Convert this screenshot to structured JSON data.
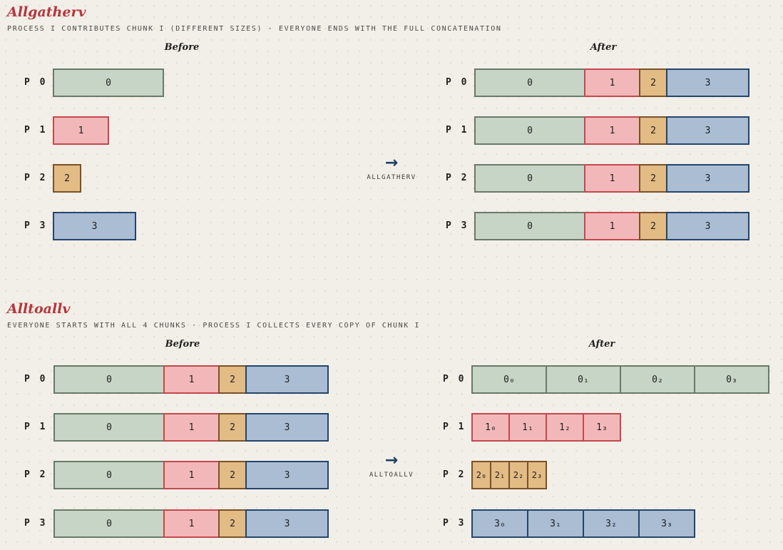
{
  "sections": [
    {
      "title": "Allgatherv",
      "subtitle": "PROCESS I CONTRIBUTES CHUNK I (DIFFERENT SIZES) · EVERYONE ENDS WITH THE FULL CONCATENATION",
      "before_label": "Before",
      "after_label": "After",
      "op_arrow": "→",
      "op_label": "ALLGATHERV",
      "before_rows": [
        {
          "label": "P 0",
          "chunks": [
            {
              "text": "0",
              "color": 0
            }
          ]
        },
        {
          "label": "P 1",
          "chunks": [
            {
              "text": "1",
              "color": 1
            }
          ]
        },
        {
          "label": "P 2",
          "chunks": [
            {
              "text": "2",
              "color": 2
            }
          ]
        },
        {
          "label": "P 3",
          "chunks": [
            {
              "text": "3",
              "color": 3
            }
          ]
        }
      ],
      "after_rows": [
        {
          "label": "P 0",
          "chunks": [
            {
              "text": "0",
              "color": 0
            },
            {
              "text": "1",
              "color": 1
            },
            {
              "text": "2",
              "color": 2
            },
            {
              "text": "3",
              "color": 3
            }
          ]
        },
        {
          "label": "P 1",
          "chunks": [
            {
              "text": "0",
              "color": 0
            },
            {
              "text": "1",
              "color": 1
            },
            {
              "text": "2",
              "color": 2
            },
            {
              "text": "3",
              "color": 3
            }
          ]
        },
        {
          "label": "P 2",
          "chunks": [
            {
              "text": "0",
              "color": 0
            },
            {
              "text": "1",
              "color": 1
            },
            {
              "text": "2",
              "color": 2
            },
            {
              "text": "3",
              "color": 3
            }
          ]
        },
        {
          "label": "P 3",
          "chunks": [
            {
              "text": "0",
              "color": 0
            },
            {
              "text": "1",
              "color": 1
            },
            {
              "text": "2",
              "color": 2
            },
            {
              "text": "3",
              "color": 3
            }
          ]
        }
      ]
    },
    {
      "title": "Alltoallv",
      "subtitle": "EVERYONE STARTS WITH ALL 4 CHUNKS · PROCESS I COLLECTS EVERY COPY OF CHUNK I",
      "before_label": "Before",
      "after_label": "After",
      "op_arrow": "→",
      "op_label": "ALLTOALLV",
      "before_rows": [
        {
          "label": "P 0",
          "chunks": [
            {
              "text": "0",
              "color": 0
            },
            {
              "text": "1",
              "color": 1
            },
            {
              "text": "2",
              "color": 2
            },
            {
              "text": "3",
              "color": 3
            }
          ]
        },
        {
          "label": "P 1",
          "chunks": [
            {
              "text": "0",
              "color": 0
            },
            {
              "text": "1",
              "color": 1
            },
            {
              "text": "2",
              "color": 2
            },
            {
              "text": "3",
              "color": 3
            }
          ]
        },
        {
          "label": "P 2",
          "chunks": [
            {
              "text": "0",
              "color": 0
            },
            {
              "text": "1",
              "color": 1
            },
            {
              "text": "2",
              "color": 2
            },
            {
              "text": "3",
              "color": 3
            }
          ]
        },
        {
          "label": "P 3",
          "chunks": [
            {
              "text": "0",
              "color": 0
            },
            {
              "text": "1",
              "color": 1
            },
            {
              "text": "2",
              "color": 2
            },
            {
              "text": "3",
              "color": 3
            }
          ]
        }
      ],
      "after_rows": [
        {
          "label": "P 0",
          "chunks": [
            {
              "text": "0₀",
              "color": 0
            },
            {
              "text": "0₁",
              "color": 0
            },
            {
              "text": "0₂",
              "color": 0
            },
            {
              "text": "0₃",
              "color": 0
            }
          ]
        },
        {
          "label": "P 1",
          "chunks": [
            {
              "text": "1₀",
              "color": 1
            },
            {
              "text": "1₁",
              "color": 1
            },
            {
              "text": "1₂",
              "color": 1
            },
            {
              "text": "1₃",
              "color": 1
            }
          ]
        },
        {
          "label": "P 2",
          "chunks": [
            {
              "text": "2₀",
              "color": 2
            },
            {
              "text": "2₁",
              "color": 2
            },
            {
              "text": "2₂",
              "color": 2
            },
            {
              "text": "2₃",
              "color": 2
            }
          ]
        },
        {
          "label": "P 3",
          "chunks": [
            {
              "text": "3₀",
              "color": 3
            },
            {
              "text": "3₁",
              "color": 3
            },
            {
              "text": "3₂",
              "color": 3
            },
            {
              "text": "3₃",
              "color": 3
            }
          ]
        }
      ]
    }
  ],
  "colors": {
    "chunk0_fill": "#c7d5c6",
    "chunk0_border": "#687a68",
    "chunk1_fill": "#f2b8b9",
    "chunk1_border": "#c5474f",
    "chunk2_fill": "#e2bb85",
    "chunk2_border": "#7a5128",
    "chunk3_fill": "#abbdd3",
    "chunk3_border": "#23456b",
    "title": "#b5363c",
    "arrow": "#1d3f66"
  }
}
